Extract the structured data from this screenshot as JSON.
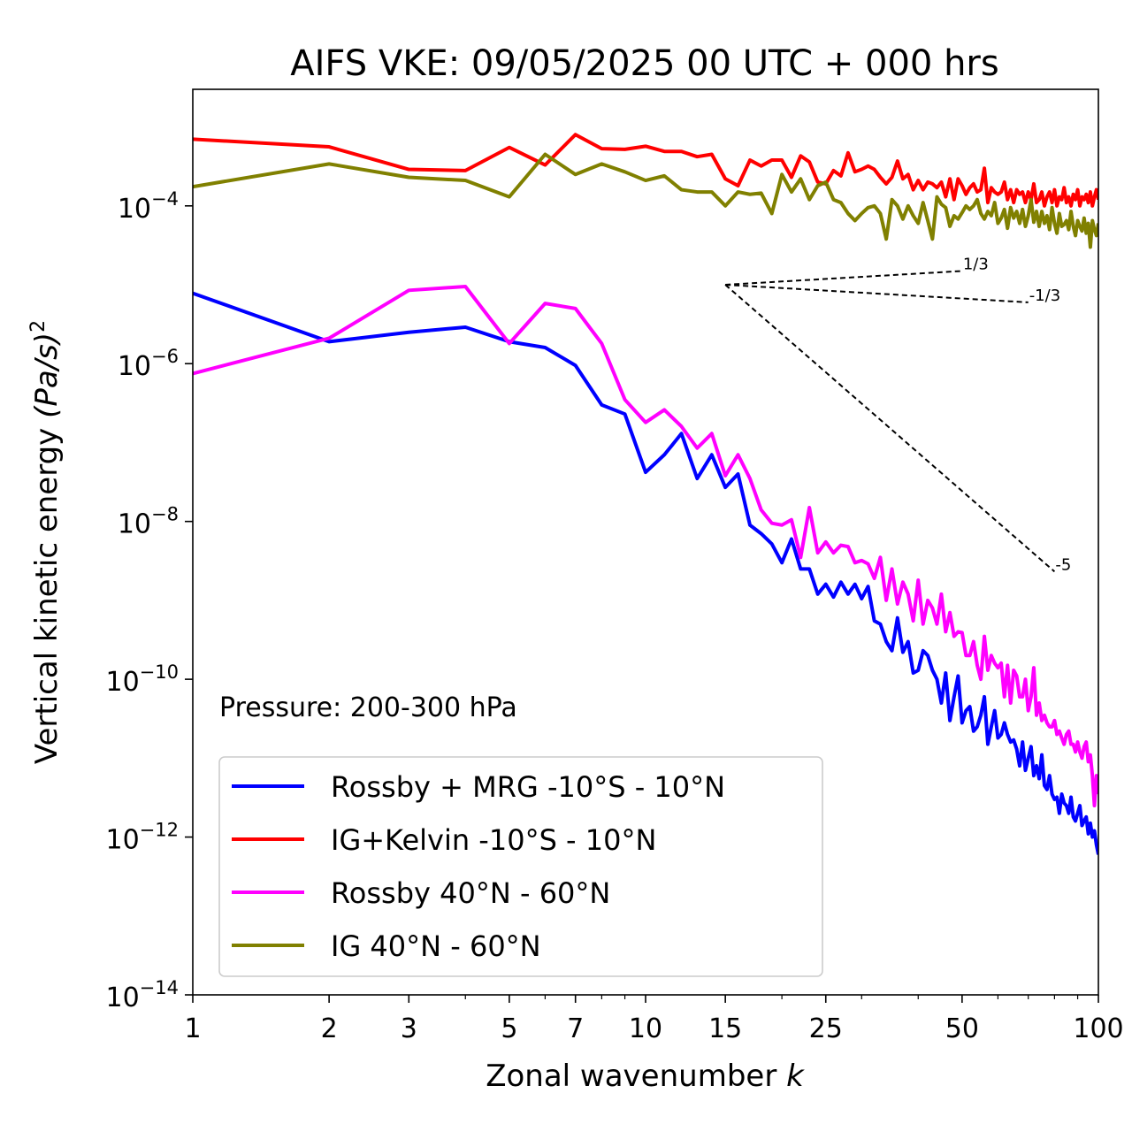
{
  "chart_data": {
    "type": "line",
    "title": "AIFS VKE: 09/05/2025 00 UTC + 000 hrs",
    "xlabel_main": "Zonal wavenumber ",
    "xlabel_italic": "k",
    "ylabel_main": "Vertical kinetic energy ",
    "ylabel_unit": "(Pa/s)",
    "ylabel_exp": "2",
    "x_scale": "log",
    "y_scale": "log",
    "xlim": [
      1,
      100
    ],
    "ylim": [
      1e-14,
      0.003
    ],
    "x_ticks": [
      1,
      2,
      3,
      5,
      7,
      10,
      15,
      25,
      50,
      100
    ],
    "x_tick_labels": [
      "1",
      "2",
      "3",
      "5",
      "7",
      "10",
      "15",
      "25",
      "50",
      "100"
    ],
    "y_ticks": [
      {
        "base": "10",
        "exp": "−4",
        "value": 0.0001
      },
      {
        "base": "10",
        "exp": "−6",
        "value": 1e-06
      },
      {
        "base": "10",
        "exp": "−8",
        "value": 1e-08
      },
      {
        "base": "10",
        "exp": "−10",
        "value": 1e-10
      },
      {
        "base": "10",
        "exp": "−12",
        "value": 1e-12
      },
      {
        "base": "10",
        "exp": "−14",
        "value": 1e-14
      }
    ],
    "annotation": "Pressure: 200-300 hPa",
    "legend_position": "lower-left",
    "grid": false,
    "series": [
      {
        "name": "Rossby + MRG -10°S - 10°N",
        "color": "#0000ff",
        "x": [
          1,
          2,
          3,
          4,
          5,
          6,
          7,
          8,
          9,
          10,
          11,
          12,
          13,
          14,
          15,
          16,
          17,
          18,
          19,
          20,
          21,
          22,
          23,
          24,
          25,
          26,
          27,
          28,
          29,
          30,
          31,
          32,
          33,
          34,
          35,
          36,
          37,
          38,
          39,
          40,
          41,
          42,
          43,
          44,
          45,
          46,
          47,
          48,
          49,
          50,
          51,
          52,
          53,
          54,
          55,
          56,
          57,
          58,
          59,
          60,
          61,
          62,
          63,
          64,
          65,
          66,
          67,
          68,
          69,
          70,
          71,
          72,
          73,
          74,
          75,
          76,
          77,
          78,
          79,
          80,
          81,
          82,
          83,
          84,
          85,
          86,
          87,
          88,
          89,
          90,
          91,
          92,
          93,
          94,
          95,
          96,
          97,
          98,
          99,
          100
        ],
        "y": [
          7.8e-06,
          1.9e-06,
          2.5e-06,
          2.9e-06,
          1.9e-06,
          1.6e-06,
          9.5e-07,
          3e-07,
          2.3e-07,
          4.2e-08,
          7e-08,
          1.3e-07,
          3.5e-08,
          7e-08,
          2.7e-08,
          4e-08,
          9e-09,
          7e-09,
          5.2e-09,
          3e-09,
          6e-09,
          2.5e-09,
          2.5e-09,
          1.2e-09,
          1.6e-09,
          1.1e-09,
          1.7e-09,
          1.2e-09,
          1.6e-09,
          1.05e-09,
          1.5e-09,
          5.5e-10,
          5e-10,
          3e-10,
          2.3e-10,
          6e-10,
          2.2e-10,
          3e-10,
          1.2e-10,
          1.3e-10,
          2.3e-10,
          2e-10,
          1.3e-10,
          1e-10,
          5e-11,
          1.2e-10,
          3e-11,
          6e-11,
          1.1e-10,
          2.8e-11,
          4e-11,
          4.5e-11,
          2.2e-11,
          2.5e-11,
          3.5e-11,
          6e-11,
          1.5e-11,
          2.5e-11,
          4e-11,
          1.8e-11,
          2e-11,
          2.8e-11,
          2e-11,
          1.6e-11,
          1.7e-11,
          1.3e-11,
          8e-12,
          1.6e-11,
          7e-12,
          1e-11,
          1.4e-11,
          6e-12,
          8e-12,
          5.5e-12,
          1.1e-11,
          4.5e-12,
          4e-12,
          6e-12,
          3.5e-12,
          3e-12,
          3.2e-12,
          2e-12,
          3.5e-12,
          2.7e-12,
          2.5e-12,
          2e-12,
          3.2e-12,
          1.8e-12,
          1.6e-12,
          2e-12,
          2.5e-12,
          1.4e-12,
          1.6e-12,
          1.8e-12,
          1.1e-12,
          1.5e-12,
          1e-12,
          1.2e-12,
          8e-13,
          6e-13
        ]
      },
      {
        "name": "IG+Kelvin -10°S - 10°N",
        "color": "#ff0000",
        "x": [
          1,
          2,
          3,
          4,
          5,
          6,
          7,
          8,
          9,
          10,
          11,
          12,
          13,
          14,
          15,
          16,
          17,
          18,
          19,
          20,
          21,
          22,
          23,
          24,
          25,
          26,
          27,
          28,
          29,
          30,
          31,
          32,
          33,
          34,
          35,
          36,
          37,
          38,
          39,
          40,
          41,
          42,
          43,
          44,
          45,
          46,
          47,
          48,
          49,
          50,
          51,
          52,
          53,
          54,
          55,
          56,
          57,
          58,
          59,
          60,
          61,
          62,
          63,
          64,
          65,
          66,
          67,
          68,
          69,
          70,
          71,
          72,
          73,
          74,
          75,
          76,
          77,
          78,
          79,
          80,
          81,
          82,
          83,
          84,
          85,
          86,
          87,
          88,
          89,
          90,
          91,
          92,
          93,
          94,
          95,
          96,
          97,
          98,
          99,
          100
        ],
        "y": [
          0.0007,
          0.00056,
          0.00029,
          0.00028,
          0.00055,
          0.00033,
          0.0008,
          0.00053,
          0.00052,
          0.00057,
          0.00049,
          0.00049,
          0.00042,
          0.00045,
          0.00022,
          0.00018,
          0.00038,
          0.00032,
          0.00038,
          0.00038,
          0.00023,
          0.00043,
          0.00036,
          0.0002,
          0.00019,
          0.00028,
          0.00024,
          0.00047,
          0.00027,
          0.00029,
          0.00032,
          0.00029,
          0.00023,
          0.00019,
          0.00023,
          0.00037,
          0.00022,
          0.00025,
          0.00016,
          0.00021,
          0.00016,
          0.0002,
          0.00019,
          0.00017,
          0.0002,
          0.00013,
          0.00022,
          0.00012,
          0.00022,
          0.00018,
          0.00014,
          0.00017,
          0.00019,
          0.00015,
          0.00016,
          0.0003,
          0.00011,
          0.00017,
          0.00015,
          0.00014,
          0.00015,
          0.0002,
          0.00012,
          0.00016,
          0.00011,
          0.00016,
          0.00014,
          0.00015,
          0.00011,
          0.00015,
          0.00012,
          0.00019,
          0.00011,
          0.00012,
          0.00015,
          0.0001,
          0.00013,
          0.00015,
          0.00011,
          0.00016,
          0.0001,
          0.00013,
          0.00012,
          0.00017,
          0.00011,
          0.00013,
          0.0001,
          0.00014,
          0.00012,
          0.00016,
          0.0001,
          0.00013,
          0.00012,
          0.00014,
          0.00011,
          0.00015,
          0.0001,
          0.00013,
          0.00016,
          0.00012
        ]
      },
      {
        "name": "Rossby 40°N - 60°N",
        "color": "#ff00ff",
        "x": [
          1,
          2,
          3,
          4,
          5,
          6,
          7,
          8,
          9,
          10,
          11,
          12,
          13,
          14,
          15,
          16,
          17,
          18,
          19,
          20,
          21,
          22,
          23,
          24,
          25,
          26,
          27,
          28,
          29,
          30,
          31,
          32,
          33,
          34,
          35,
          36,
          37,
          38,
          39,
          40,
          41,
          42,
          43,
          44,
          45,
          46,
          47,
          48,
          49,
          50,
          51,
          52,
          53,
          54,
          55,
          56,
          57,
          58,
          59,
          60,
          61,
          62,
          63,
          64,
          65,
          66,
          67,
          68,
          69,
          70,
          71,
          72,
          73,
          74,
          75,
          76,
          77,
          78,
          79,
          80,
          81,
          82,
          83,
          84,
          85,
          86,
          87,
          88,
          89,
          90,
          91,
          92,
          93,
          94,
          95,
          96,
          97,
          98,
          99,
          100
        ],
        "y": [
          7.5e-07,
          2.1e-06,
          8.5e-06,
          9.5e-06,
          1.8e-06,
          5.8e-06,
          5e-06,
          1.8e-06,
          3.5e-07,
          1.8e-07,
          2.6e-07,
          1.6e-07,
          8.5e-08,
          1.3e-07,
          3.8e-08,
          7e-08,
          3.5e-08,
          1.4e-08,
          9.5e-09,
          9e-09,
          1.05e-08,
          3.5e-09,
          1.5e-08,
          4e-09,
          5.5e-09,
          4e-09,
          5e-09,
          4.8e-09,
          3e-09,
          3.2e-09,
          2.9e-09,
          1.9e-09,
          3.5e-09,
          1e-09,
          2.5e-09,
          9e-10,
          1.7e-09,
          1.2e-09,
          5.5e-10,
          1.8e-09,
          5e-10,
          1e-09,
          8e-10,
          5e-10,
          1.2e-09,
          4e-10,
          7e-10,
          3.5e-10,
          4e-10,
          3.9e-10,
          2e-10,
          2e-10,
          3e-10,
          1.5e-10,
          1e-10,
          3.5e-10,
          1.3e-10,
          2e-10,
          1.6e-10,
          1.4e-10,
          1.6e-10,
          6e-11,
          1.5e-10,
          5e-11,
          1.3e-10,
          1.1e-10,
          6e-11,
          6e-11,
          1e-10,
          4e-11,
          6e-11,
          1.4e-10,
          3.5e-11,
          5e-11,
          3e-11,
          3.5e-11,
          2.8e-11,
          2.5e-11,
          2.5e-11,
          3e-11,
          2e-11,
          2.2e-11,
          1.8e-11,
          1.5e-11,
          2e-11,
          2.2e-11,
          1.5e-11,
          1.5e-11,
          1.2e-11,
          1.6e-11,
          1.2e-11,
          1e-11,
          1.4e-11,
          1.6e-11,
          9e-12,
          1.1e-11,
          6e-12,
          2.5e-12,
          6e-12,
          3.5e-12
        ]
      },
      {
        "name": "IG 40°N - 60°N",
        "color": "#808000",
        "x": [
          1,
          2,
          3,
          4,
          5,
          6,
          7,
          8,
          9,
          10,
          11,
          12,
          13,
          14,
          15,
          16,
          17,
          18,
          19,
          20,
          21,
          22,
          23,
          24,
          25,
          26,
          27,
          28,
          29,
          30,
          31,
          32,
          33,
          34,
          35,
          36,
          37,
          38,
          39,
          40,
          41,
          42,
          43,
          44,
          45,
          46,
          47,
          48,
          49,
          50,
          51,
          52,
          53,
          54,
          55,
          56,
          57,
          58,
          59,
          60,
          61,
          62,
          63,
          64,
          65,
          66,
          67,
          68,
          69,
          70,
          71,
          72,
          73,
          74,
          75,
          76,
          77,
          78,
          79,
          80,
          81,
          82,
          83,
          84,
          85,
          86,
          87,
          88,
          89,
          90,
          91,
          92,
          93,
          94,
          95,
          96,
          97,
          98,
          99,
          100
        ],
        "y": [
          0.000175,
          0.00034,
          0.00023,
          0.00021,
          0.00013,
          0.00045,
          0.00025,
          0.00034,
          0.00027,
          0.00021,
          0.00024,
          0.00016,
          0.00015,
          0.00015,
          0.0001,
          0.00015,
          0.00014,
          0.000145,
          8e-05,
          0.00025,
          0.00015,
          0.00022,
          0.00012,
          0.00018,
          0.0002,
          0.00012,
          0.00011,
          8e-05,
          6.5e-05,
          8e-05,
          9.5e-05,
          0.0001,
          8e-05,
          3.8e-05,
          0.00012,
          0.0001,
          6.8e-05,
          0.0001,
          7.5e-05,
          6e-05,
          0.00011,
          6.5e-05,
          3.8e-05,
          0.00013,
          0.000105,
          9.5e-05,
          5.5e-05,
          7.5e-05,
          6.8e-05,
          8.2e-05,
          0.0001,
          9e-05,
          0.0001,
          0.00012,
          8e-05,
          6.8e-05,
          8.5e-05,
          7.5e-05,
          0.00011,
          6e-05,
          7e-05,
          9e-05,
          5.2e-05,
          9.5e-05,
          7e-05,
          8.5e-05,
          6e-05,
          9e-05,
          5.5e-05,
          7.5e-05,
          0.00012,
          6.2e-05,
          8.5e-05,
          5.5e-05,
          8.5e-05,
          6e-05,
          7.5e-05,
          5e-05,
          9.5e-05,
          6e-05,
          4.5e-05,
          8e-05,
          5.5e-05,
          5.8e-05,
          6.5e-05,
          5e-05,
          8.5e-05,
          5.5e-05,
          4.2e-05,
          6.5e-05,
          5.5e-05,
          4.8e-05,
          7e-05,
          4.5e-05,
          6e-05,
          3e-05,
          6.5e-05,
          5e-05,
          4.2e-05,
          6e-05
        ]
      }
    ],
    "reference_slopes": [
      {
        "label": "1/3",
        "slope": 0.333333,
        "x_start": 15,
        "x_end": 50,
        "y_start": 1e-05
      },
      {
        "label": "-1/3",
        "slope": -0.333333,
        "x_start": 15,
        "x_end": 70,
        "y_start": 1e-05
      },
      {
        "label": "-5",
        "slope": -5,
        "x_start": 15,
        "x_end": 80,
        "y_start": 1e-05
      }
    ]
  }
}
